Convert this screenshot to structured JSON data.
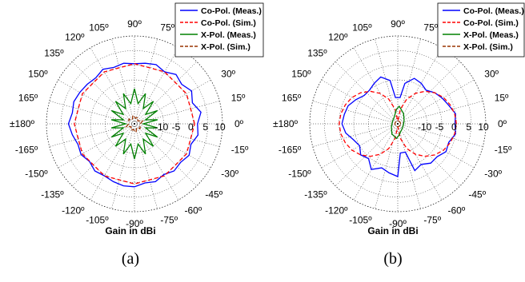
{
  "chart_data": [
    {
      "type": "polar-line",
      "panel_label": "(a)",
      "xlabel": "Gain in dBi",
      "rlim": [
        -20,
        10
      ],
      "radial_ticks": [
        "-10",
        "-5",
        "0",
        "5",
        "10"
      ],
      "angle_labels": [
        "0º",
        "15º",
        "30º",
        "45º",
        "60º",
        "75º",
        "90º",
        "105º",
        "120º",
        "135º",
        "150º",
        "165º",
        "±180º",
        "-165º",
        "-150º",
        "-135º",
        "-120º",
        "-105º",
        "-90º",
        "-75º",
        "-60º",
        "-45º",
        "-30º",
        "-15º"
      ],
      "legend_position": "top-right",
      "series": [
        {
          "name": "Co-Pol. (Meas.)",
          "color": "#0000ff",
          "dash": "solid",
          "angles": [
            0,
            10,
            20,
            30,
            40,
            50,
            60,
            70,
            80,
            90,
            100,
            110,
            120,
            130,
            140,
            150,
            160,
            170,
            180,
            190,
            200,
            210,
            220,
            230,
            240,
            250,
            260,
            270,
            280,
            290,
            300,
            310,
            320,
            330,
            340,
            350
          ],
          "values": [
            1.5,
            3,
            1,
            2.5,
            1,
            2,
            0.5,
            1.5,
            1,
            0.5,
            1,
            0.5,
            1.5,
            0.5,
            1,
            1.5,
            2,
            1.5,
            2.5,
            1.5,
            0.5,
            1,
            0,
            1,
            0.5,
            1,
            1.5,
            1.5,
            0.5,
            1,
            0,
            1,
            0.5,
            1.5,
            0.5,
            2
          ]
        },
        {
          "name": "Co-Pol. (Sim.)",
          "color": "#ff0000",
          "dash": "dashed",
          "angles": [
            0,
            30,
            60,
            90,
            120,
            150,
            180,
            210,
            240,
            270,
            300,
            330
          ],
          "values": [
            0.5,
            0.5,
            0.5,
            0.5,
            0.5,
            0.5,
            0.5,
            0.5,
            0.5,
            0.5,
            0.5,
            0.5
          ]
        },
        {
          "name": "X-Pol. (Meas.)",
          "color": "#008000",
          "dash": "solid",
          "angles": [
            0,
            10,
            20,
            30,
            40,
            50,
            60,
            70,
            80,
            90,
            100,
            110,
            120,
            130,
            140,
            150,
            160,
            170,
            180,
            190,
            200,
            210,
            220,
            230,
            240,
            250,
            260,
            270,
            280,
            290,
            300,
            310,
            320,
            330,
            340,
            350
          ],
          "values": [
            -17,
            -12,
            -16,
            -11,
            -15,
            -10,
            -14,
            -9,
            -13,
            -8,
            -13,
            -9,
            -14,
            -10,
            -15,
            -11,
            -16,
            -12,
            -17,
            -12,
            -16,
            -11,
            -15,
            -10,
            -14,
            -9,
            -13,
            -8,
            -13,
            -9,
            -14,
            -10,
            -15,
            -11,
            -16,
            -12
          ]
        },
        {
          "name": "X-Pol. (Sim.)",
          "color": "#993300",
          "dash": "dashed",
          "angles": [
            0,
            20,
            40,
            60,
            80,
            100,
            120,
            140,
            160,
            180,
            200,
            220,
            240,
            260,
            280,
            300,
            320,
            340
          ],
          "values": [
            -18,
            -17,
            -18.5,
            -17.5,
            -18,
            -17,
            -18.5,
            -17.5,
            -18,
            -18,
            -17,
            -18.5,
            -17.5,
            -18,
            -17,
            -18.5,
            -17.5,
            -18
          ]
        }
      ]
    },
    {
      "type": "polar-line",
      "panel_label": "(b)",
      "xlabel": "Gain in dBi",
      "rlim": [
        -20,
        10
      ],
      "radial_ticks": [
        "-10",
        "-5",
        "0",
        "5",
        "10"
      ],
      "angle_labels": [
        "0º",
        "15º",
        "30º",
        "45º",
        "60º",
        "75º",
        "90º",
        "105º",
        "120º",
        "135º",
        "150º",
        "165º",
        "±180º",
        "-165º",
        "-150º",
        "-135º",
        "-120º",
        "-105º",
        "-90º",
        "-75º",
        "-60º",
        "-45º",
        "-30º",
        "-15º"
      ],
      "legend_position": "top-right",
      "series": [
        {
          "name": "Co-Pol. (Meas.)",
          "color": "#0000ff",
          "dash": "solid",
          "angles": [
            0,
            10,
            20,
            30,
            40,
            50,
            60,
            70,
            80,
            85,
            95,
            100,
            110,
            120,
            130,
            140,
            150,
            160,
            170,
            180,
            190,
            200,
            210,
            220,
            230,
            240,
            250,
            260,
            270,
            275,
            285,
            290,
            300,
            310,
            320,
            330,
            340,
            350
          ],
          "values": [
            -0.5,
            0,
            -1.5,
            -2.5,
            -3.5,
            -5,
            -4,
            -3.5,
            -6,
            -11,
            -11,
            -5,
            -3,
            -4,
            -5,
            -5,
            -3.5,
            -2,
            -1.5,
            -1,
            -2,
            -4,
            -5,
            -3.5,
            -4.5,
            -2,
            -4,
            -3,
            -2,
            -10,
            -10,
            -3,
            -4,
            -2.5,
            -2.5,
            -1,
            -1.5,
            0
          ]
        },
        {
          "name": "Co-Pol. (Sim.)",
          "color": "#ff0000",
          "dash": "dashed",
          "angles": [
            0,
            10,
            20,
            30,
            40,
            50,
            60,
            70,
            80,
            88,
            92,
            100,
            110,
            120,
            130,
            140,
            150,
            160,
            170,
            180,
            190,
            200,
            210,
            220,
            230,
            240,
            250,
            260,
            268,
            272,
            280,
            290,
            300,
            310,
            320,
            330,
            340,
            350
          ],
          "values": [
            0,
            -0.3,
            -1,
            -2,
            -3.5,
            -5.5,
            -8,
            -11,
            -15,
            -19,
            -19,
            -15,
            -11,
            -8,
            -5.5,
            -3.5,
            -2,
            -1,
            -0.3,
            0,
            -0.3,
            -1,
            -2,
            -3.5,
            -5.5,
            -8,
            -11,
            -15,
            -19,
            -19,
            -15,
            -11,
            -8,
            -5.5,
            -3.5,
            -2,
            -1,
            -0.3
          ]
        },
        {
          "name": "X-Pol. (Meas.)",
          "color": "#008000",
          "dash": "solid",
          "angles": [
            0,
            30,
            60,
            85,
            95,
            120,
            150,
            180,
            210,
            240,
            265,
            275,
            300,
            330
          ],
          "values": [
            -18,
            -17.5,
            -16,
            -14,
            -15,
            -17.5,
            -18,
            -18,
            -17.5,
            -16,
            -15,
            -16,
            -17.5,
            -18
          ]
        },
        {
          "name": "X-Pol. (Sim.)",
          "color": "#993300",
          "dash": "dashed",
          "angles": [
            0,
            45,
            90,
            135,
            180,
            225,
            270,
            315
          ],
          "values": [
            -19,
            -19,
            -19,
            -19,
            -19,
            -19,
            -19,
            -19
          ]
        }
      ]
    }
  ]
}
